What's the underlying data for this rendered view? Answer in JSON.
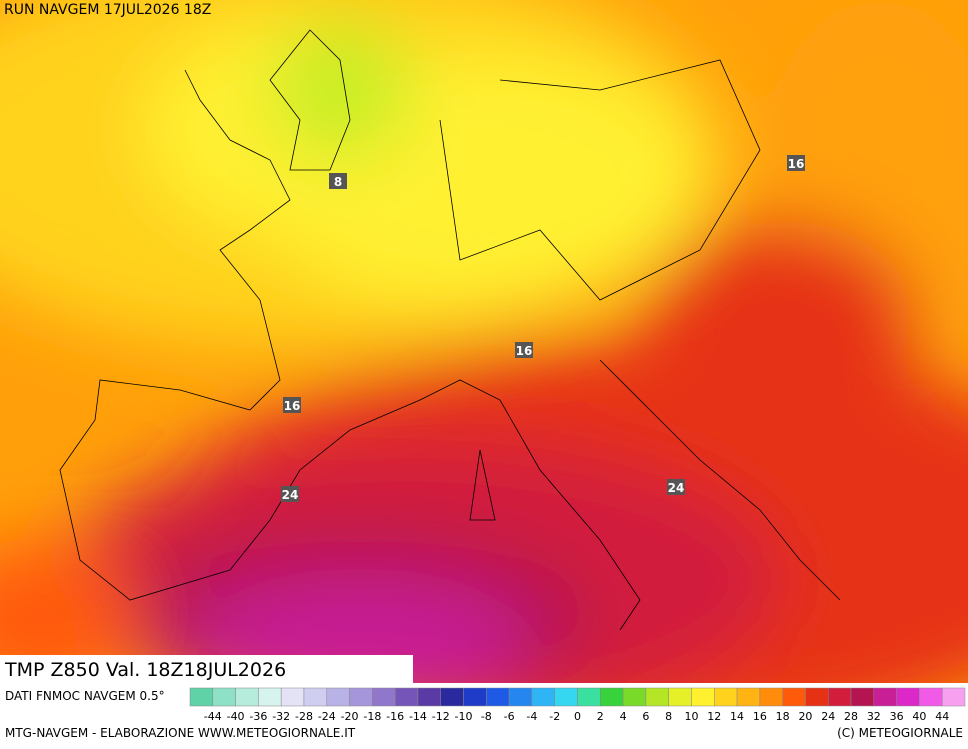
{
  "header": "RUN NAVGEM 17JUL2026 18Z",
  "contour_labels": [
    8,
    16,
    16,
    16,
    24,
    24
  ],
  "panel_title": "TMP Z850 Val. 18Z18JUL2026",
  "legend": {
    "source": "DATI FNMOC NAVGEM 0.5°",
    "ticks": [
      -44,
      -40,
      -36,
      -32,
      -28,
      -24,
      -20,
      -18,
      -16,
      -14,
      -12,
      -10,
      -8,
      -6,
      -4,
      -2,
      0,
      2,
      4,
      6,
      8,
      10,
      12,
      14,
      16,
      18,
      20,
      24,
      28,
      32,
      36,
      40,
      44
    ],
    "colors": [
      "#5fd2a8",
      "#8ee0c6",
      "#b6ecdc",
      "#d6f3ee",
      "#e3e3f5",
      "#cfcdf0",
      "#b9b2e6",
      "#a595db",
      "#9077cc",
      "#7655b8",
      "#5a3aa5",
      "#2a2a9e",
      "#1e3cc8",
      "#1f5ae6",
      "#2686f0",
      "#2fb4f5",
      "#34d6f0",
      "#3ae0a0",
      "#38d23c",
      "#7ada2a",
      "#b4e626",
      "#e6f028",
      "#fff030",
      "#ffd21e",
      "#ffb414",
      "#ff8c0a",
      "#ff5a0a",
      "#e63214",
      "#d21e3c",
      "#b41450",
      "#c81e96",
      "#dc28c8",
      "#f05ae6",
      "#f8a0f0"
    ]
  },
  "footer_left": "MTG-NAVGEM - ELABORAZIONE WWW.METEOGIORNALE.IT",
  "footer_right": "(C) METEOGIORNALE"
}
